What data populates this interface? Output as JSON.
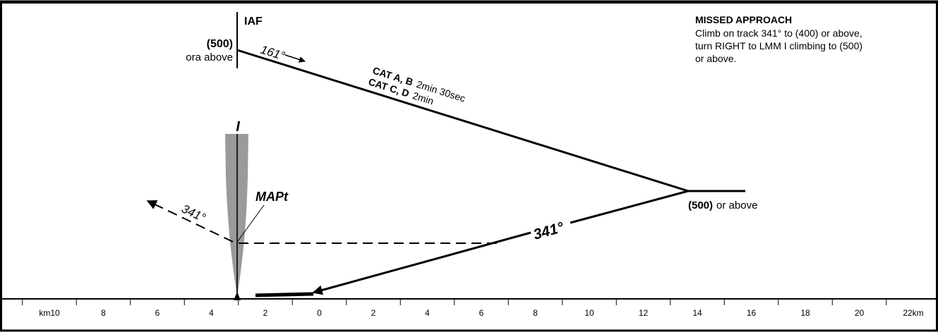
{
  "missed_approach": {
    "title": "MISSED APPROACH",
    "line1": "Climb on track 341° to (400) or above,",
    "line2": "turn RIGHT to LMM I climbing to (500)",
    "line3": "or above."
  },
  "iaf": {
    "label": "IAF",
    "altitude": "(500)",
    "altitude_note": "ora above"
  },
  "outbound": {
    "track": "161°",
    "cat_ab_label": "CAT A, B",
    "cat_ab_time": "2min 30sec",
    "cat_cd_label": "CAT C, D",
    "cat_cd_time": "2min"
  },
  "turn_point": {
    "altitude": "(500)",
    "altitude_note": "or above"
  },
  "inbound": {
    "track": "341°"
  },
  "missed_track": {
    "track": "341°"
  },
  "beacon": {
    "label": "I"
  },
  "mapt": {
    "label": "MAPt"
  },
  "scale": {
    "ticks": [
      {
        "label": "km10"
      },
      {
        "label": "8"
      },
      {
        "label": "6"
      },
      {
        "label": "4"
      },
      {
        "label": "2"
      },
      {
        "label": "0"
      },
      {
        "label": "2"
      },
      {
        "label": "4"
      },
      {
        "label": "6"
      },
      {
        "label": "8"
      },
      {
        "label": "10"
      },
      {
        "label": "12"
      },
      {
        "label": "14"
      },
      {
        "label": "16"
      },
      {
        "label": "18"
      },
      {
        "label": "20"
      },
      {
        "label": "22km"
      }
    ]
  }
}
